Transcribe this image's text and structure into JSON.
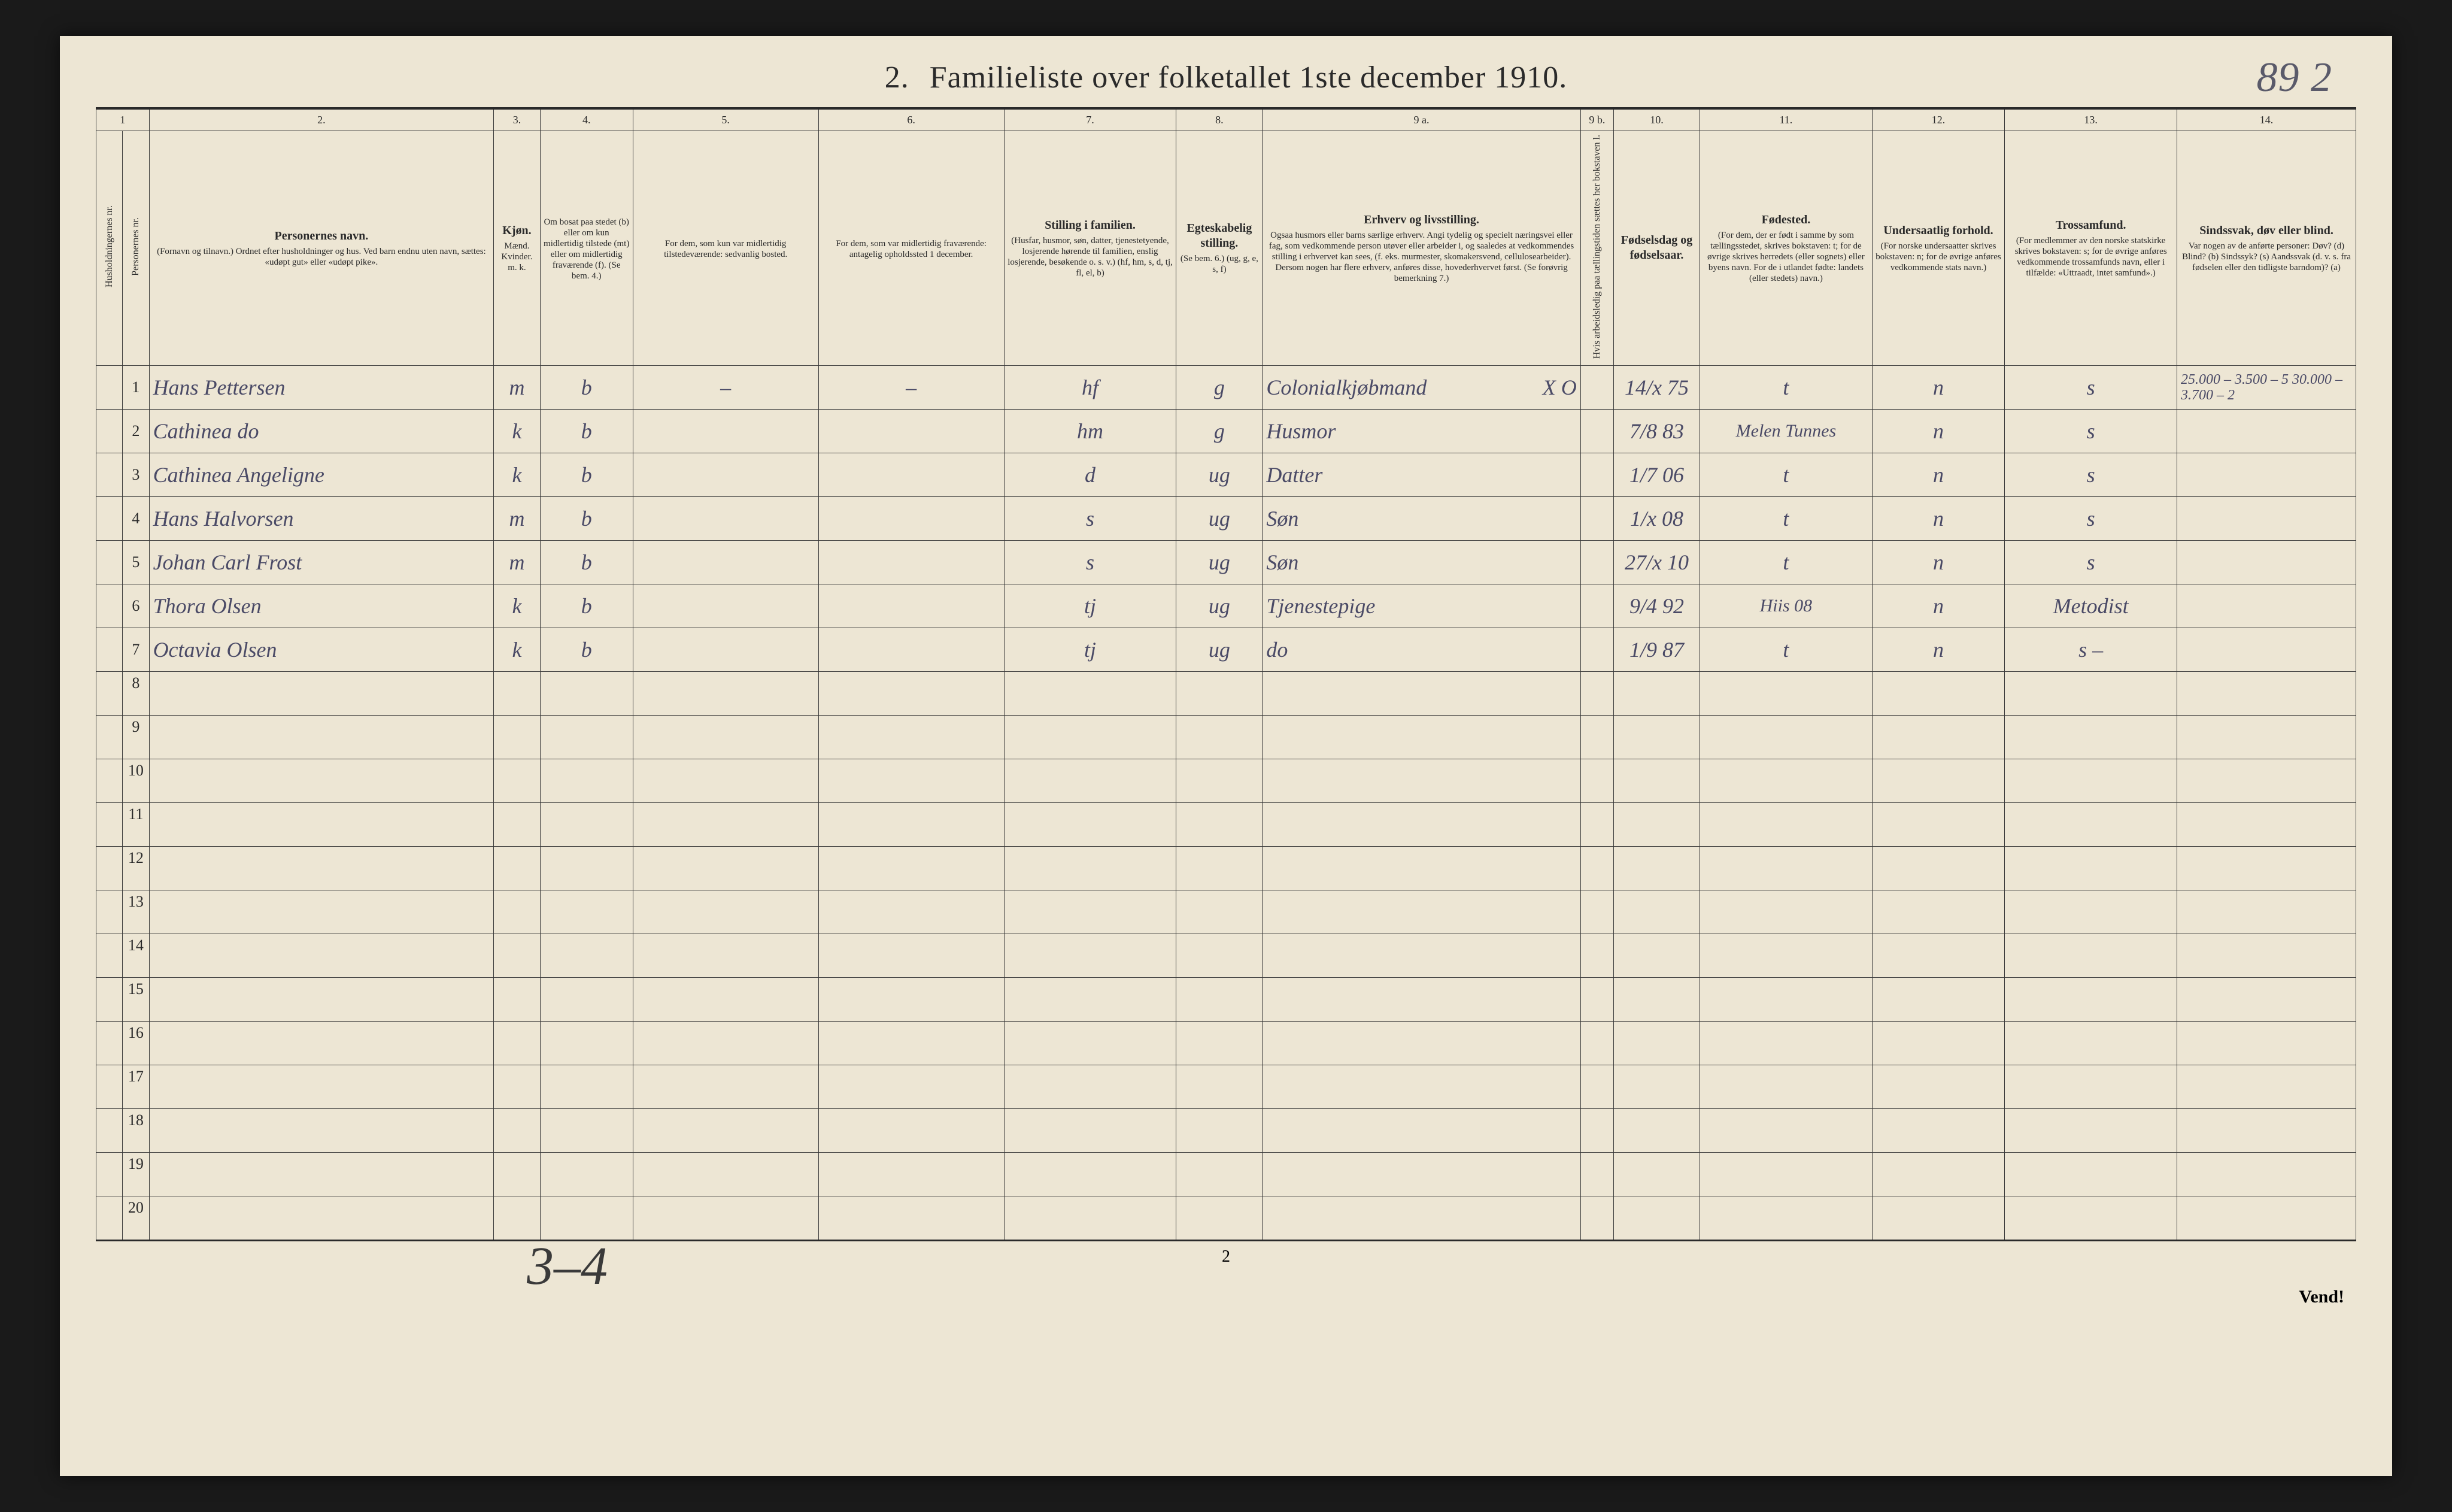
{
  "title": {
    "number": "2.",
    "text": "Familieliste over folketallet 1ste december 1910."
  },
  "handwritten_top_right": "89 2",
  "columns": {
    "numbers": [
      "1",
      "2.",
      "3.",
      "4.",
      "5.",
      "6.",
      "7.",
      "8.",
      "9 a.",
      "9 b.",
      "10.",
      "11.",
      "12.",
      "13.",
      "14."
    ],
    "headers": {
      "c1a": "Husholdningernes nr.",
      "c1b": "Personernes nr.",
      "c2_strong": "Personernes navn.",
      "c2_sub": "(Fornavn og tilnavn.)\nOrdnet efter husholdninger og hus.\nVed barn endnu uten navn, sættes: «udøpt gut» eller «udøpt pike».",
      "c3_strong": "Kjøn.",
      "c3_sub": "Mænd. Kvinder.\nm. k.",
      "c4": "Om bosat paa stedet (b) eller om kun midlertidig tilstede (mt) eller om midlertidig fraværende (f). (Se bem. 4.)",
      "c5": "For dem, som kun var midlertidig tilstedeværende:\nsedvanlig bosted.",
      "c6": "For dem, som var midlertidig fraværende:\nantagelig opholdssted 1 december.",
      "c7_strong": "Stilling i familien.",
      "c7_sub": "(Husfar, husmor, søn, datter, tjenestetyende, losjerende hørende til familien, enslig losjerende, besøkende o. s. v.)\n(hf, hm, s, d, tj, fl, el, b)",
      "c8_strong": "Egteskabelig stilling.",
      "c8_sub": "(Se bem. 6.)\n(ug, g, e, s, f)",
      "c9a_strong": "Erhverv og livsstilling.",
      "c9a_sub": "Ogsaa husmors eller barns særlige erhverv. Angi tydelig og specielt næringsvei eller fag, som vedkommende person utøver eller arbeider i, og saaledes at vedkommendes stilling i erhvervet kan sees, (f. eks. murmester, skomakersvend, cellulosearbeider). Dersom nogen har flere erhverv, anføres disse, hovederhvervet først.\n(Se forøvrig bemerkning 7.)",
      "c9b": "Hvis arbeidsledig paa tællingstiden sættes her bokstaven l.",
      "c10_strong": "Fødselsdag og fødselsaar.",
      "c11_strong": "Fødested.",
      "c11_sub": "(For dem, der er født i samme by som tællingsstedet, skrives bokstaven: t; for de øvrige skrives herredets (eller sognets) eller byens navn. For de i utlandet fødte: landets (eller stedets) navn.)",
      "c12_strong": "Undersaatlig forhold.",
      "c12_sub": "(For norske undersaatter skrives bokstaven: n; for de øvrige anføres vedkommende stats navn.)",
      "c13_strong": "Trossamfund.",
      "c13_sub": "(For medlemmer av den norske statskirke skrives bokstaven: s; for de øvrige anføres vedkommende trossamfunds navn, eller i tilfælde: «Uttraadt, intet samfund».)",
      "c14_strong": "Sindssvak, døv eller blind.",
      "c14_sub": "Var nogen av de anførte personer:\nDøv? (d)\nBlind? (b)\nSindssyk? (s)\nAandssvak (d. v. s. fra fødselen eller den tidligste barndom)? (a)"
    }
  },
  "rows": [
    {
      "nr": "1",
      "name": "Hans Pettersen",
      "sex": "m",
      "res": "b",
      "c5": "–",
      "c6": "–",
      "fam": "hf",
      "mar": "g",
      "occ": "Colonialkjøbmand",
      "xo": "X O",
      "dob": "14/x 75",
      "birthplace": "t",
      "nat": "n",
      "rel": "s",
      "c14": "25.000 – 3.500 – 5\n30.000 – 3.700 – 2"
    },
    {
      "nr": "2",
      "name": "Cathinea  do",
      "sex": "k",
      "res": "b",
      "c5": "",
      "c6": "",
      "fam": "hm",
      "mar": "g",
      "occ": "Husmor",
      "dob": "7/8 83",
      "birthplace": "Melen Tunnes",
      "nat": "n",
      "rel": "s",
      "c14": ""
    },
    {
      "nr": "3",
      "name": "Cathinea Angeligne",
      "sex": "k",
      "res": "b",
      "c5": "",
      "c6": "",
      "fam": "d",
      "mar": "ug",
      "occ": "Datter",
      "dob": "1/7 06",
      "birthplace": "t",
      "nat": "n",
      "rel": "s",
      "c14": ""
    },
    {
      "nr": "4",
      "name": "Hans Halvorsen",
      "sex": "m",
      "res": "b",
      "c5": "",
      "c6": "",
      "fam": "s",
      "mar": "ug",
      "occ": "Søn",
      "dob": "1/x 08",
      "birthplace": "t",
      "nat": "n",
      "rel": "s",
      "c14": ""
    },
    {
      "nr": "5",
      "name": "Johan Carl Frost",
      "sex": "m",
      "res": "b",
      "c5": "",
      "c6": "",
      "fam": "s",
      "mar": "ug",
      "occ": "Søn",
      "dob": "27/x 10",
      "birthplace": "t",
      "nat": "n",
      "rel": "s",
      "c14": ""
    },
    {
      "nr": "6",
      "name": "Thora Olsen",
      "sex": "k",
      "res": "b",
      "c5": "",
      "c6": "",
      "fam": "tj",
      "mar": "ug",
      "occ": "Tjenestepige",
      "dob": "9/4 92",
      "birthplace": "Hiis 08",
      "nat": "n",
      "rel": "Metodist",
      "c14": ""
    },
    {
      "nr": "7",
      "name": "Octavia Olsen",
      "sex": "k",
      "res": "b",
      "c5": "",
      "c6": "",
      "fam": "tj",
      "mar": "ug",
      "occ": "do",
      "dob": "1/9 87",
      "birthplace": "t",
      "nat": "n",
      "rel": "s –",
      "c14": ""
    }
  ],
  "empty_rows": [
    "8",
    "9",
    "10",
    "11",
    "12",
    "13",
    "14",
    "15",
    "16",
    "17",
    "18",
    "19",
    "20"
  ],
  "footer": {
    "page_num": "2",
    "vend": "Vend!",
    "handwritten_bl": "3–4"
  },
  "colors": {
    "paper": "#ede6d4",
    "ink_print": "#2a2a2a",
    "ink_hand": "#4a4a66",
    "border": "#3a3a3a",
    "page_bg": "#1a1a1a"
  }
}
